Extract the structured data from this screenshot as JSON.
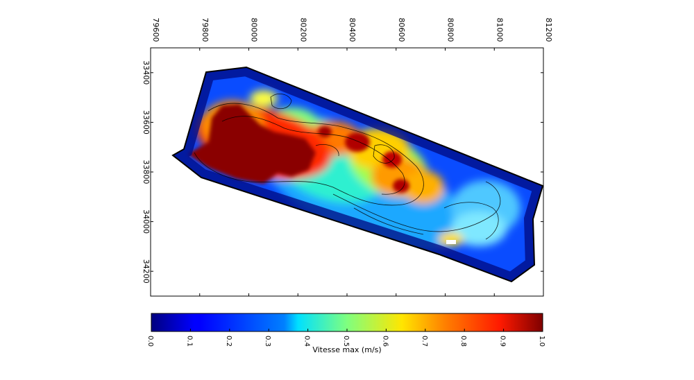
{
  "chart_data": {
    "type": "heatmap",
    "title": "",
    "colormap": "jet",
    "x_axis": {
      "range": [
        79600,
        81200
      ],
      "ticks": [
        "79600",
        "79800",
        "80000",
        "80200",
        "80400",
        "80600",
        "80800",
        "81000",
        "81200"
      ],
      "labels_rotated": true,
      "position": "top"
    },
    "y_axis": {
      "range": [
        33300,
        34300
      ],
      "ticks": [
        "33400",
        "33600",
        "33800",
        "34000",
        "34200"
      ],
      "labels_rotated": true
    },
    "colorbar": {
      "label": "Vitesse max (m/s)",
      "range": [
        0.0,
        1.0
      ],
      "ticks": [
        "0.0",
        "0.1",
        "0.2",
        "0.3",
        "0.4",
        "0.5",
        "0.6",
        "0.7",
        "0.8",
        "0.9",
        "1.0"
      ],
      "orientation": "horizontal",
      "placement": "bottom"
    },
    "colors": {
      "low": "#00007f",
      "mid_low": "#0080ff",
      "mid": "#7fff7f",
      "mid_high": "#ff8000",
      "high": "#7f0000"
    }
  }
}
